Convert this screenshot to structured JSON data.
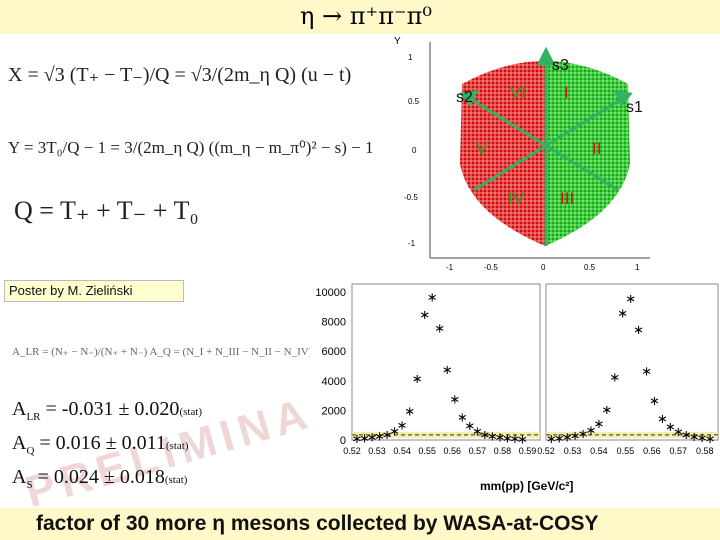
{
  "title": "η → π⁺π⁻π⁰",
  "formulas": {
    "x": "X = √3 (T₊ − T₋)/Q = √3/(2m_η Q) (u − t)",
    "y": "Y = 3T₀/Q − 1 = 3/(2m_η Q) ((m_η − m_π⁰)² − s) − 1",
    "q": "Q = T₊ + T₋ + T₀",
    "asym": "A_LR = (N₊ − N₋)/(N₊ + N₋)   A_Q = (N_I + N_III − N_II − N_IV)/(N_I + N_III + N_II + N_IV)"
  },
  "poster": "Poster by  M. Zieliński",
  "results": [
    {
      "name": "A",
      "sub": "LR",
      "value": " = -0.031 ± 0.020",
      "stat": "(stat)"
    },
    {
      "name": "A",
      "sub": "Q",
      "value": " = 0.016 ± 0.011",
      "stat": "(stat)"
    },
    {
      "name": "A",
      "sub": "S",
      "value": " = 0.024 ± 0.018",
      "stat": "(stat)"
    }
  ],
  "watermark": "PRELIMINARY",
  "dalitz": {
    "y_axis_label": "Y",
    "y_ticks": [
      "1",
      "0.5",
      "0",
      "-0.5",
      "-1"
    ],
    "x_ticks": [
      "-1",
      "-0.5",
      "0",
      "0.5",
      "1"
    ],
    "axes_labels": [
      "s3",
      "s2",
      "s1"
    ],
    "sector_labels": [
      "I",
      "II",
      "III",
      "IV",
      "V",
      "VI"
    ],
    "colors": {
      "red": "#d81818",
      "green": "#22c422",
      "arrow": "#33b060"
    }
  },
  "chart_data": {
    "type": "scatter",
    "title": "",
    "xlabel": "mm(pp) [GeV/c²]",
    "ylabel": "",
    "ylim": [
      0,
      10000
    ],
    "y_ticks": [
      0,
      2000,
      4000,
      6000,
      8000,
      10000
    ],
    "x_ticks": [
      "0.52",
      "0.53",
      "0.54",
      "0.55",
      "0.56",
      "0.57",
      "0.58",
      "0.59"
    ],
    "x_ticks_right": [
      "0.52",
      "0.53",
      "0.54",
      "0.55",
      "0.56",
      "0.57",
      "0.58"
    ],
    "series": [
      {
        "name": "left",
        "x": [
          0.522,
          0.525,
          0.528,
          0.531,
          0.534,
          0.537,
          0.54,
          0.543,
          0.546,
          0.549,
          0.552,
          0.555,
          0.558,
          0.561,
          0.564,
          0.567,
          0.57,
          0.573,
          0.576,
          0.579,
          0.582,
          0.585,
          0.588
        ],
        "y": [
          120,
          160,
          220,
          300,
          420,
          650,
          1050,
          2000,
          4200,
          8500,
          9700,
          7600,
          4800,
          2800,
          1600,
          1000,
          650,
          420,
          300,
          220,
          170,
          140,
          110
        ]
      },
      {
        "name": "right",
        "x": [
          0.522,
          0.525,
          0.528,
          0.531,
          0.534,
          0.537,
          0.54,
          0.543,
          0.546,
          0.549,
          0.552,
          0.555,
          0.558,
          0.561,
          0.564,
          0.567,
          0.57,
          0.573,
          0.576,
          0.579,
          0.582
        ],
        "y": [
          130,
          170,
          240,
          330,
          460,
          700,
          1150,
          2100,
          4300,
          8600,
          9600,
          7500,
          4700,
          2700,
          1500,
          950,
          600,
          400,
          280,
          200,
          150
        ]
      }
    ],
    "background_level": 350
  },
  "footer": "factor of 30 more  η  mesons collected by WASA-at-COSY"
}
